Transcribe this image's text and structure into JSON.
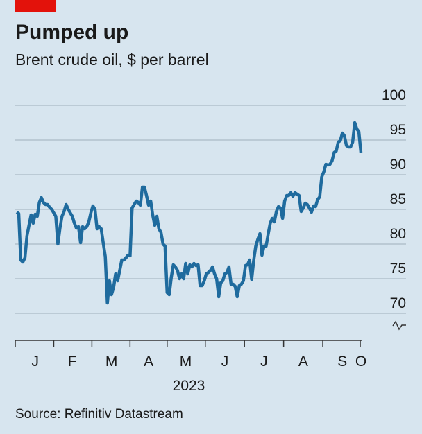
{
  "chart_data": {
    "type": "line",
    "title": "Pumped up",
    "subtitle": "Brent crude oil, $ per barrel",
    "source": "Source: Refinitiv Datastream",
    "xlabel": "2023",
    "categories": [
      null,
      null,
      null,
      null,
      null,
      null,
      null,
      null,
      null,
      "J",
      null,
      null,
      null,
      null,
      null,
      null,
      null,
      null,
      null,
      null,
      null,
      null,
      null,
      null,
      null,
      null,
      null,
      "F",
      null,
      null,
      null,
      null,
      null,
      null,
      null,
      null,
      null,
      null,
      null,
      null,
      null,
      null,
      null,
      null,
      null,
      null,
      "M",
      null,
      null,
      null,
      null,
      null,
      null,
      null,
      null,
      null,
      null,
      null,
      null,
      null,
      null,
      null,
      null,
      null,
      "A",
      null,
      null,
      null,
      null,
      null,
      null,
      null,
      null,
      null,
      null,
      null,
      null,
      null,
      null,
      null,
      null,
      null,
      "M",
      null,
      null,
      null,
      null,
      null,
      null,
      null,
      null,
      null,
      null,
      null,
      null,
      null,
      null,
      null,
      null,
      null,
      null,
      "J",
      null,
      null,
      null,
      null,
      null,
      null,
      null,
      null,
      null,
      null,
      null,
      null,
      null,
      null,
      null,
      null,
      null,
      null,
      "J",
      null,
      null,
      null,
      null,
      null,
      null,
      null,
      null,
      null,
      null,
      null,
      null,
      null,
      null,
      null,
      null,
      null,
      null,
      "A",
      null,
      null,
      null,
      null,
      null,
      null,
      null,
      null,
      null,
      null,
      null,
      null,
      null,
      null,
      null,
      null,
      null,
      null,
      "S",
      null,
      null,
      null,
      null,
      null,
      null,
      null,
      null,
      "O"
    ],
    "series": [
      {
        "name": "Brent crude oil",
        "color": "#1f6b9e",
        "values": [
          84.6,
          84.4,
          77.7,
          77.4,
          78,
          81.2,
          82.7,
          84.2,
          83,
          84.3,
          84,
          86,
          86.7,
          86,
          85.7,
          85.7,
          85.3,
          85,
          84.5,
          84,
          80,
          82.3,
          84,
          84.7,
          85.7,
          85,
          84.5,
          84,
          83,
          82.3,
          82.5,
          80.2,
          82.5,
          82.2,
          82.5,
          83.2,
          84.5,
          85.5,
          85,
          82.2,
          82.5,
          82.2,
          80.2,
          78.2,
          71.5,
          74.7,
          72.7,
          73.7,
          75.7,
          74.7,
          76.2,
          77.7,
          77.7,
          78,
          78.4,
          78.3,
          85.2,
          85.7,
          86.2,
          86,
          85.6,
          88.2,
          88.2,
          87,
          85.6,
          86.2,
          84.2,
          82.7,
          84,
          82.2,
          81.7,
          80,
          79.7,
          73,
          72.7,
          75.2,
          77,
          76.7,
          76.2,
          75,
          75.7,
          75,
          77.2,
          75.7,
          77,
          76.7,
          77.2,
          76.9,
          77,
          74,
          74,
          74.7,
          75.7,
          75.9,
          76.2,
          76.7,
          75.7,
          75,
          72.4,
          74.4,
          74.7,
          75.7,
          75.9,
          76.7,
          74.2,
          74.2,
          73.9,
          72.4,
          74,
          74.2,
          74.7,
          76.9,
          77,
          77.7,
          74.9,
          77.7,
          79.7,
          80.7,
          81.5,
          78.4,
          79.7,
          79.7,
          81.4,
          83,
          83.7,
          83.2,
          84.7,
          85.4,
          85.2,
          83.7,
          86.2,
          87,
          87,
          87.4,
          86.9,
          87.4,
          87.2,
          87,
          84.7,
          85.2,
          85.9,
          85.7,
          85.2,
          84.6,
          85.5,
          85.4,
          86.4,
          86.8,
          89.7,
          90.4,
          91.5,
          91.4,
          91.5,
          92,
          93.2,
          93.4,
          94.7,
          94.9,
          96,
          95.6,
          94.2,
          94,
          94,
          94.7,
          97.5,
          96.6,
          96.2,
          93.2
        ]
      }
    ],
    "ylim": [
      70,
      100
    ],
    "yticks": [
      70,
      75,
      80,
      85,
      90,
      95,
      100
    ],
    "grid": true
  }
}
